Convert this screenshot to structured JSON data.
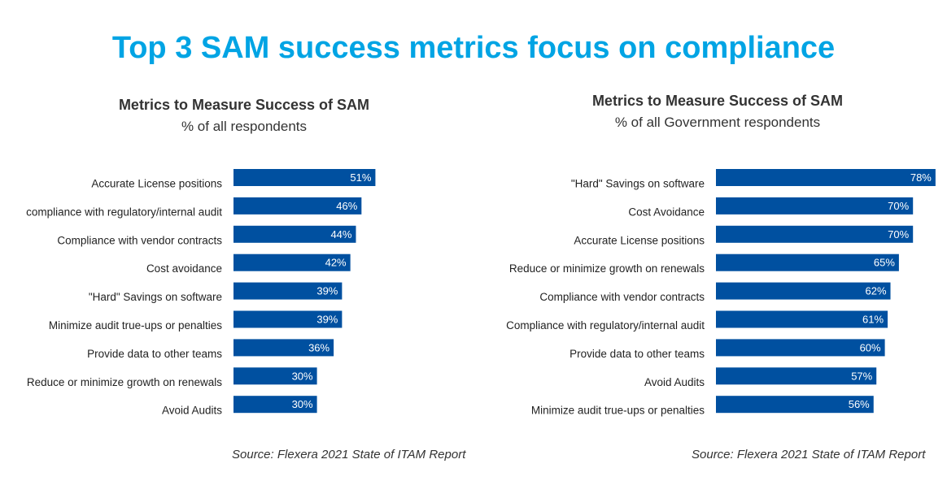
{
  "page": {
    "title": "Top 3 SAM success metrics focus on compliance",
    "title_color": "#00a4e4",
    "bar_color": "#0050a0"
  },
  "chart_data": [
    {
      "type": "bar",
      "orientation": "horizontal",
      "title": "Metrics to Measure Success of SAM",
      "subtitle": "% of all respondents",
      "source": "Source: Flexera 2021 State of ITAM Report",
      "categories": [
        "Accurate License positions",
        "compliance with regulatory/internal audit",
        "Compliance with vendor contracts",
        "Cost avoidance",
        "\"Hard\" Savings on software",
        "Minimize audit true-ups or penalties",
        "Provide data to other teams",
        "Reduce or minimize growth on renewals",
        "Avoid Audits"
      ],
      "values": [
        51,
        46,
        44,
        42,
        39,
        39,
        36,
        30,
        30
      ],
      "value_labels": [
        "51%",
        "46%",
        "44%",
        "42%",
        "39%",
        "39%",
        "36%",
        "30%",
        "30%"
      ],
      "unit": "%",
      "xlim": [
        0,
        100
      ],
      "grid": false
    },
    {
      "type": "bar",
      "orientation": "horizontal",
      "title": "Metrics to Measure Success of SAM",
      "subtitle": "% of all Government respondents",
      "source": "Source: Flexera 2021 State of ITAM Report",
      "categories": [
        "\"Hard\" Savings on software",
        "Cost Avoidance",
        "Accurate License positions",
        "Reduce or minimize growth on renewals",
        "Compliance with vendor contracts",
        "Compliance with regulatory/internal audit",
        "Provide data to other teams",
        "Avoid Audits",
        "Minimize audit true-ups or penalties"
      ],
      "values": [
        78,
        70,
        70,
        65,
        62,
        61,
        60,
        57,
        56
      ],
      "value_labels": [
        "78%",
        "70%",
        "70%",
        "65%",
        "62%",
        "61%",
        "60%",
        "57%",
        "56%"
      ],
      "unit": "%",
      "xlim": [
        0,
        100
      ],
      "grid": false
    }
  ]
}
